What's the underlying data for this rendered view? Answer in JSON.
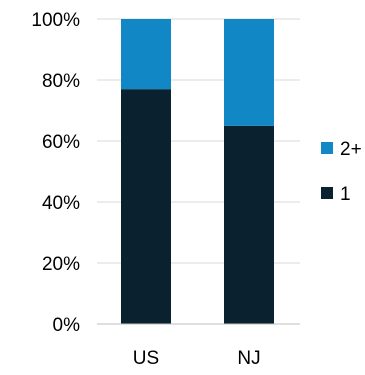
{
  "chart_data": {
    "type": "bar",
    "stacked": true,
    "categories": [
      "US",
      "NJ"
    ],
    "series": [
      {
        "name": "1",
        "values": [
          77,
          65
        ],
        "color": "#0a2230"
      },
      {
        "name": "2+",
        "values": [
          23,
          35
        ],
        "color": "#1187c6"
      }
    ],
    "ylim": [
      0,
      100
    ],
    "yticks": [
      0,
      20,
      40,
      60,
      80,
      100
    ],
    "ytick_labels": [
      "0%",
      "20%",
      "40%",
      "60%",
      "80%",
      "100%"
    ],
    "grid": true,
    "grid_color": "#d9d9d9",
    "legend_position": "right",
    "legend_order": [
      "2+",
      "1"
    ],
    "title": "",
    "xlabel": "",
    "ylabel": ""
  }
}
